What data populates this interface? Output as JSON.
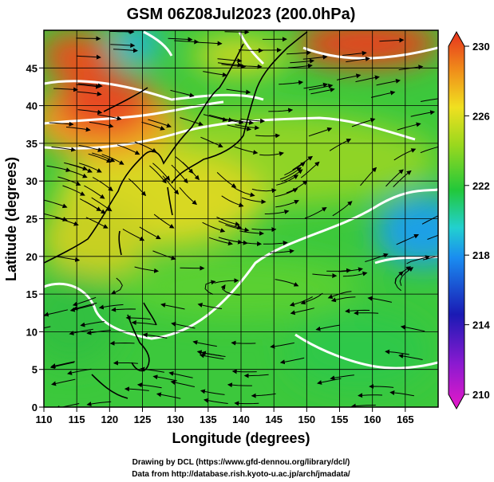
{
  "title": "GSM 06Z08Jul2023 (200.0hPa)",
  "x_axis": {
    "label": "Longitude (degrees)",
    "min": 110,
    "max": 170,
    "ticks": [
      "110",
      "115",
      "120",
      "125",
      "130",
      "135",
      "140",
      "145",
      "150",
      "155",
      "160",
      "165"
    ]
  },
  "y_axis": {
    "label": "Latitude  (degrees)",
    "min": 0,
    "max": 50,
    "ticks": [
      "0",
      "5",
      "10",
      "15",
      "20",
      "25",
      "30",
      "35",
      "40",
      "45"
    ]
  },
  "colorbar": {
    "min": 210,
    "max": 230,
    "labels": [
      "210",
      "214",
      "218",
      "222",
      "226",
      "230"
    ],
    "colors": [
      "#e619c8",
      "#1a1ab4",
      "#1a8cf0",
      "#22d0d0",
      "#22c83a",
      "#9ad81e",
      "#f0e020",
      "#f08c1a",
      "#e6321e"
    ]
  },
  "credits": {
    "line1": "Drawing by DCL (https://www.gfd-dennou.org/library/dcl/)",
    "line2": "Data from http://database.rish.kyoto-u.ac.jp/arch/jmadata/"
  }
}
